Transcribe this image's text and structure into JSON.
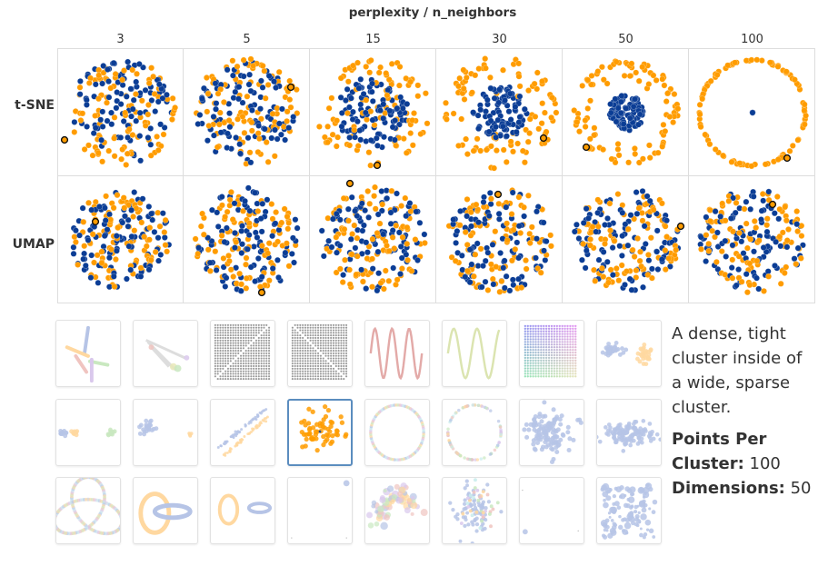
{
  "header": {
    "title": "perplexity / n_neighbors"
  },
  "columns": [
    "3",
    "5",
    "15",
    "30",
    "50",
    "100"
  ],
  "rows": [
    "t-SNE",
    "UMAP"
  ],
  "colors": {
    "cluster_inner": "#0b3d95",
    "cluster_outer": "#ff9c00",
    "selected_border": "#5b8dbf"
  },
  "thumbnails": [
    {
      "name": "star"
    },
    {
      "name": "linked-clusters"
    },
    {
      "name": "grid-diagonal-up"
    },
    {
      "name": "grid-diagonal-down"
    },
    {
      "name": "sine-red"
    },
    {
      "name": "sine-green"
    },
    {
      "name": "color-grid"
    },
    {
      "name": "two-clusters"
    },
    {
      "name": "three-clusters"
    },
    {
      "name": "two-clusters-far"
    },
    {
      "name": "parallel-lines"
    },
    {
      "name": "nested-clusters",
      "selected": true
    },
    {
      "name": "circle-evenly-spaced"
    },
    {
      "name": "circle-random"
    },
    {
      "name": "gaussian-cloud"
    },
    {
      "name": "gaussian-cloud-elongated"
    },
    {
      "name": "trefoil-knot"
    },
    {
      "name": "linked-rings"
    },
    {
      "name": "unlinked-rings"
    },
    {
      "name": "corner-outlier"
    },
    {
      "name": "random-walk"
    },
    {
      "name": "random-jump"
    },
    {
      "name": "sparse-corners"
    },
    {
      "name": "uniform-random"
    }
  ],
  "description": {
    "text": "A dense, tight cluster inside of a wide, sparse cluster.",
    "points_label": "Points Per Cluster:",
    "points_value": "100",
    "dims_label": "Dimensions:",
    "dims_value": "50"
  }
}
